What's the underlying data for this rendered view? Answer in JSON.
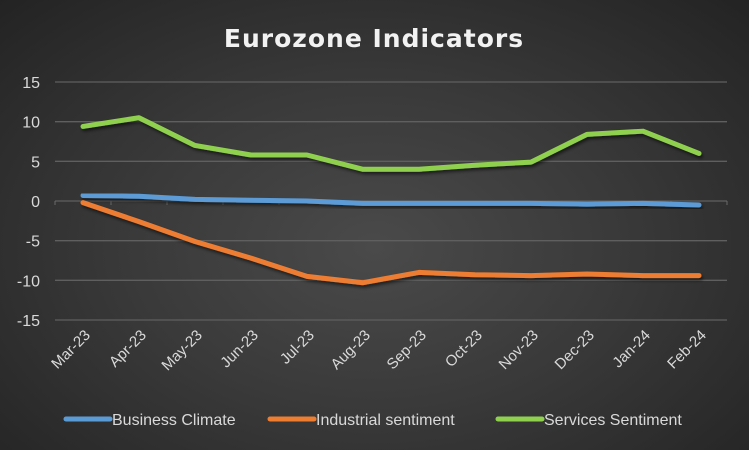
{
  "chart_data": {
    "type": "line",
    "title": "Eurozone Indicators",
    "xlabel": "",
    "ylabel": "",
    "ylim": [
      -15,
      15
    ],
    "yticks": [
      "15",
      "10",
      "5",
      "0",
      "-5",
      "-10",
      "-15"
    ],
    "ytick_values": [
      15,
      10,
      5,
      0,
      -5,
      -10,
      -15
    ],
    "grid": true,
    "legend_position": "bottom",
    "categories": [
      "Mar-23",
      "Apr-23",
      "May-23",
      "Jun-23",
      "Jul-23",
      "Aug-23",
      "Sep-23",
      "Oct-23",
      "Nov-23",
      "Dec-23",
      "Jan-24",
      "Feb-24"
    ],
    "series": [
      {
        "name": "Business Climate",
        "color": "#5b9bd5",
        "values": [
          0.7,
          0.6,
          0.2,
          0.1,
          0.0,
          -0.3,
          -0.3,
          -0.3,
          -0.3,
          -0.4,
          -0.3,
          -0.5
        ]
      },
      {
        "name": "Industrial sentiment",
        "color": "#ed7d31",
        "values": [
          -0.2,
          -2.6,
          -5.1,
          -7.2,
          -9.5,
          -10.3,
          -9.0,
          -9.3,
          -9.4,
          -9.2,
          -9.4,
          -9.4
        ]
      },
      {
        "name": "Services Sentiment",
        "color": "#8fd14f",
        "values": [
          9.4,
          10.5,
          7.0,
          5.8,
          5.8,
          4.0,
          4.0,
          4.5,
          4.9,
          8.4,
          8.8,
          6.0
        ]
      }
    ]
  }
}
